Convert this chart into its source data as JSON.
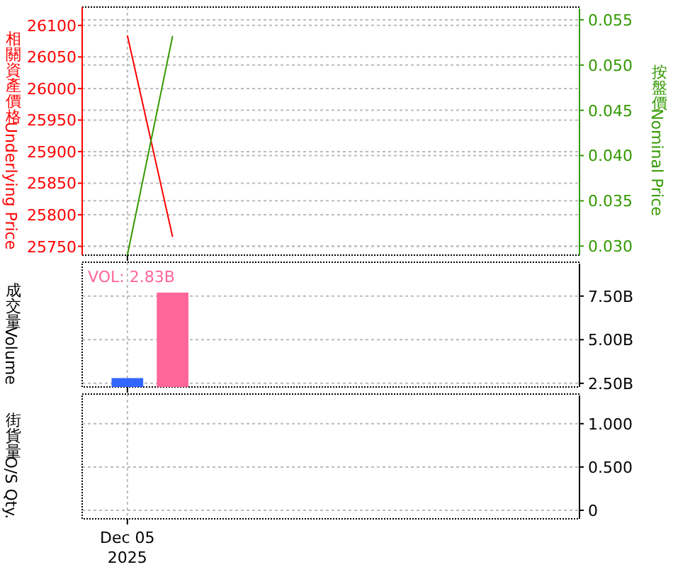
{
  "chart_data": [
    {
      "type": "line",
      "categories": [
        null,
        null,
        null,
        null,
        null,
        null,
        null,
        null,
        null,
        null
      ],
      "tick_labels": "y",
      "grid": true,
      "ylabel": "相關資產價格Underlying Price",
      "y2label": "按盤價Nominal Price",
      "ylim": [
        25736,
        26129
      ],
      "yticks": [
        25750,
        25800,
        25850,
        25900,
        25950,
        26000,
        26050,
        26100
      ],
      "y2lim": [
        0.029,
        0.0564
      ],
      "y2ticks": [
        {
          "value": 0.03,
          "label": "0.030"
        },
        {
          "value": 0.035,
          "label": "0.035"
        },
        {
          "value": 0.04,
          "label": "0.040"
        },
        {
          "value": 0.045,
          "label": "0.045"
        },
        {
          "value": 0.05,
          "label": "0.050"
        },
        {
          "value": 0.055,
          "label": "0.055"
        }
      ],
      "series": [
        {
          "color": "#ff0000",
          "values": [
            26084,
            25765,
            null,
            null,
            null,
            null,
            null,
            null,
            null,
            null
          ]
        },
        {
          "color": "#339900",
          "axis": "y2",
          "values": [
            0.029,
            0.0532,
            null,
            null,
            null,
            null,
            null,
            null,
            null,
            null
          ]
        }
      ]
    },
    {
      "type": "bar",
      "categories": [
        null,
        null,
        null,
        null,
        null,
        null,
        null,
        null,
        null,
        null
      ],
      "tick_labels": "y",
      "grid": true,
      "ylabel": "成交量Volume",
      "annotations": [
        "VOL: 2.83B"
      ],
      "y2lim": [
        2.29,
        9.44
      ],
      "y2ticks": [
        {
          "value": 2.5,
          "label": "2.50B"
        },
        {
          "value": 5,
          "label": "5.00B"
        },
        {
          "value": 7.5,
          "label": "7.50B"
        }
      ],
      "series": [
        {
          "axis": "y2",
          "colors": [
            "#3366ff",
            "#ff6699",
            null,
            null,
            null,
            null,
            null,
            null,
            null,
            null
          ],
          "values": [
            2.8,
            7.7,
            null,
            null,
            null,
            null,
            null,
            null,
            null,
            null
          ]
        }
      ]
    },
    {
      "type": "line",
      "categories": [
        "Dec 05\n2025",
        null,
        null,
        null,
        null,
        null,
        null,
        null,
        null,
        null
      ],
      "grid": true,
      "ylabel": "街貨量O/S Qty.",
      "y2lim": [
        -0.098,
        1.342
      ],
      "y2ticks": [
        {
          "value": 0,
          "label": "0"
        },
        {
          "value": 0.5,
          "label": "0.500"
        },
        {
          "value": 1,
          "label": "1.000"
        }
      ],
      "series": [
        {
          "axis": "y2",
          "values": [
            null,
            null,
            null,
            null,
            null,
            null,
            null,
            null,
            null,
            null
          ]
        }
      ]
    }
  ]
}
